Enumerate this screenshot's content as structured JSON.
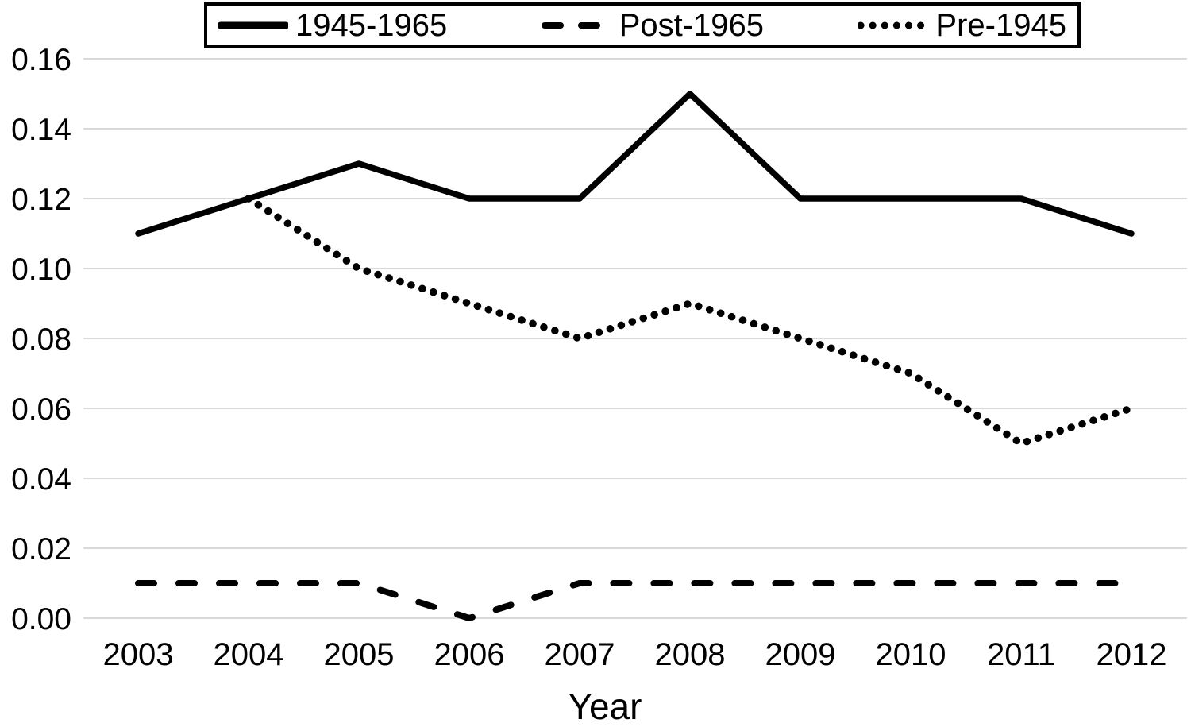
{
  "chart_data": {
    "type": "line",
    "title": "",
    "xlabel": "Year",
    "ylabel": "",
    "x": [
      2003,
      2004,
      2005,
      2006,
      2007,
      2008,
      2009,
      2010,
      2011,
      2012
    ],
    "y_ticks": [
      "0.00",
      "0.02",
      "0.04",
      "0.06",
      "0.08",
      "0.10",
      "0.12",
      "0.14",
      "0.16"
    ],
    "ylim": [
      0,
      0.16
    ],
    "grid": "horizontal-only",
    "gridline_color": "#d9d9d9",
    "line_color": "#000000",
    "legend_position": "top",
    "series": [
      {
        "name": "1945-1965",
        "line_style": "solid",
        "values": [
          0.11,
          0.12,
          0.13,
          0.12,
          0.12,
          0.15,
          0.12,
          0.12,
          0.12,
          0.11
        ]
      },
      {
        "name": "Post-1965",
        "line_style": "dashed",
        "values": [
          0.01,
          0.01,
          0.01,
          0.0,
          0.01,
          0.01,
          0.01,
          0.01,
          0.01,
          0.01
        ]
      },
      {
        "name": "Pre-1945",
        "line_style": "dotted",
        "values": [
          null,
          0.12,
          0.1,
          0.09,
          0.08,
          0.09,
          0.08,
          0.07,
          0.05,
          0.06
        ]
      }
    ]
  }
}
